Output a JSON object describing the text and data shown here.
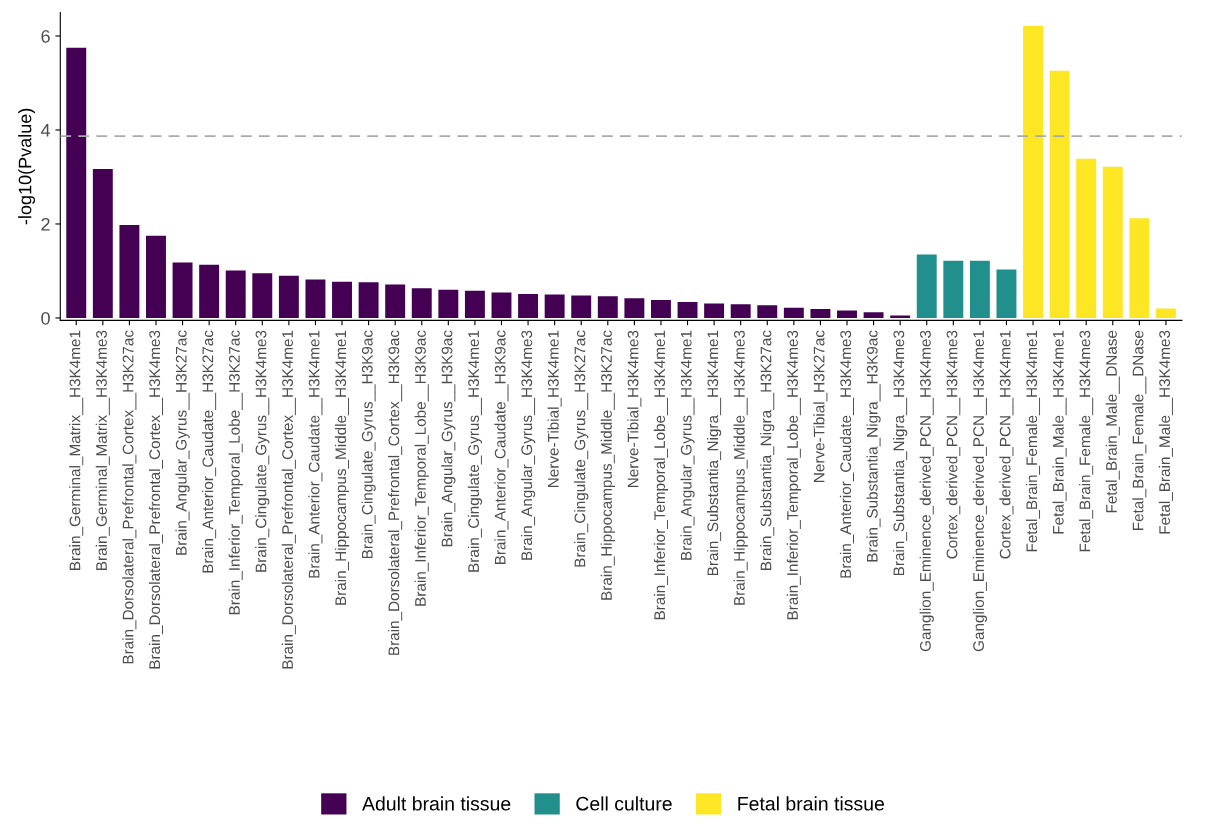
{
  "chart_data": {
    "type": "bar",
    "ylabel": "-log10(Pvalue)",
    "categories": [
      "Brain_Germinal_Matrix__H3K4me1",
      "Brain_Germinal_Matrix__H3K4me3",
      "Brain_Dorsolateral_Prefrontal_Cortex__H3K27ac",
      "Brain_Dorsolateral_Prefrontal_Cortex__H3K4me3",
      "Brain_Angular_Gyrus__H3K27ac",
      "Brain_Anterior_Caudate__H3K27ac",
      "Brain_Inferior_Temporal_Lobe__H3K27ac",
      "Brain_Cingulate_Gyrus__H3K4me3",
      "Brain_Dorsolateral_Prefrontal_Cortex__H3K4me1",
      "Brain_Anterior_Caudate__H3K4me1",
      "Brain_Hippocampus_Middle__H3K4me1",
      "Brain_Cingulate_Gyrus__H3K9ac",
      "Brain_Dorsolateral_Prefrontal_Cortex__H3K9ac",
      "Brain_Inferior_Temporal_Lobe__H3K9ac",
      "Brain_Angular_Gyrus__H3K9ac",
      "Brain_Cingulate_Gyrus__H3K4me1",
      "Brain_Anterior_Caudate__H3K9ac",
      "Brain_Angular_Gyrus__H3K4me3",
      "Nerve-Tibial_H3K4me1",
      "Brain_Cingulate_Gyrus__H3K27ac",
      "Brain_Hippocampus_Middle__H3K27ac",
      "Nerve-Tibial_H3K4me3",
      "Brain_Inferior_Temporal_Lobe__H3K4me1",
      "Brain_Angular_Gyrus__H3K4me1",
      "Brain_Substantia_Nigra__H3K4me1",
      "Brain_Hippocampus_Middle__H3K4me3",
      "Brain_Substantia_Nigra__H3K27ac",
      "Brain_Inferior_Temporal_Lobe__H3K4me3",
      "Nerve-Tibial_H3K27ac",
      "Brain_Anterior_Caudate__H3K4me3",
      "Brain_Substantia_Nigra__H3K9ac",
      "Brain_Substantia_Nigra__H3K4me3",
      "Ganglion_Eminence_derived_PCN__H3K4me3",
      "Cortex_derived_PCN__H3K4me3",
      "Ganglion_Eminence_derived_PCN__H3K4me1",
      "Cortex_derived_PCN__H3K4me1",
      "Fetal_Brain_Female__H3K4me1",
      "Fetal_Brain_Male__H3K4me1",
      "Fetal_Brain_Female__H3K4me3",
      "Fetal_Brain_Male__DNase",
      "Fetal_Brain_Female__DNase",
      "Fetal_Brain_Male__H3K4me3"
    ],
    "series": [
      {
        "name": "Adult brain tissue",
        "color": "#440154",
        "values": [
          5.75,
          3.17,
          1.98,
          1.75,
          1.18,
          1.13,
          1.01,
          0.95,
          0.9,
          0.82,
          0.77,
          0.76,
          0.71,
          0.63,
          0.6,
          0.58,
          0.54,
          0.51,
          0.5,
          0.48,
          0.46,
          0.42,
          0.38,
          0.34,
          0.31,
          0.29,
          0.27,
          0.22,
          0.19,
          0.16,
          0.12,
          0.05,
          null,
          null,
          null,
          null,
          null,
          null,
          null,
          null,
          null,
          null
        ]
      },
      {
        "name": "Cell culture",
        "color": "#21908c",
        "values": [
          null,
          null,
          null,
          null,
          null,
          null,
          null,
          null,
          null,
          null,
          null,
          null,
          null,
          null,
          null,
          null,
          null,
          null,
          null,
          null,
          null,
          null,
          null,
          null,
          null,
          null,
          null,
          null,
          null,
          null,
          null,
          null,
          1.35,
          1.22,
          1.22,
          1.03,
          null,
          null,
          null,
          null,
          null,
          null
        ]
      },
      {
        "name": "Fetal brain tissue",
        "color": "#fde725",
        "values": [
          null,
          null,
          null,
          null,
          null,
          null,
          null,
          null,
          null,
          null,
          null,
          null,
          null,
          null,
          null,
          null,
          null,
          null,
          null,
          null,
          null,
          null,
          null,
          null,
          null,
          null,
          null,
          null,
          null,
          null,
          null,
          null,
          null,
          null,
          null,
          null,
          6.22,
          5.26,
          3.39,
          3.22,
          2.12,
          0.2
        ]
      }
    ],
    "ylim": [
      -0.05,
      6.5
    ],
    "yticks": [
      0,
      2,
      4,
      6
    ],
    "ref_lines": [
      {
        "axis": "y",
        "value": 3.87,
        "color": "#aaaaaa",
        "line_style": "dashed"
      }
    ],
    "grid": false,
    "legend": "bottom"
  }
}
